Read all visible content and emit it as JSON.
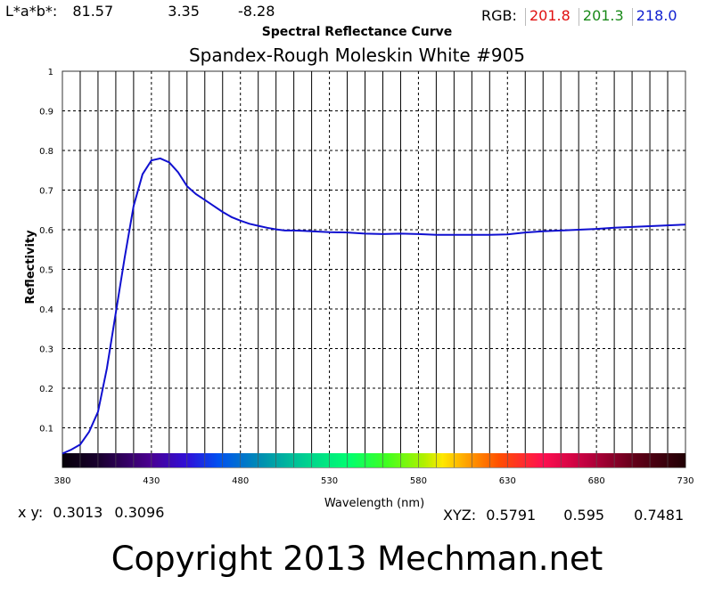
{
  "header": {
    "lab_label": "L*a*b*:",
    "lab_L": "81.57",
    "lab_a": "3.35",
    "lab_b": "-8.28",
    "rgb_label": "RGB:",
    "rgb_r": "201.8",
    "rgb_g": "201.3",
    "rgb_b": "218.0",
    "title": "Spectral Reflectance Curve"
  },
  "footer": {
    "xy_label": "x y:",
    "x": "0.3013",
    "y": "0.3096",
    "xyz_label": "XYZ:",
    "X": "0.5791",
    "Y": "0.595",
    "Z": "0.7481",
    "copyright": "Copyright 2013 Mechman.net"
  },
  "colors": {
    "curve": "#1010d0",
    "rgb_r": "#e01010",
    "rgb_g": "#1a8a1a",
    "rgb_b": "#1020d0"
  },
  "chart_data": {
    "type": "line",
    "title": "Spandex-Rough Moleskin White #905",
    "xlabel": "Wavelength (nm)",
    "ylabel": "Reflectivity",
    "xlim": [
      380,
      730
    ],
    "ylim": [
      0,
      1
    ],
    "xticks": [
      380,
      430,
      480,
      530,
      580,
      630,
      680,
      730
    ],
    "yticks": [
      "0.1",
      "0.2",
      "0.3",
      "0.4",
      "0.5",
      "0.6",
      "0.7",
      "0.8",
      "0.9",
      "1"
    ],
    "grid": true,
    "spectrum_bar": true,
    "series": [
      {
        "x": [
          380,
          385,
          390,
          395,
          400,
          405,
          410,
          415,
          420,
          425,
          430,
          435,
          440,
          445,
          450,
          455,
          460,
          465,
          470,
          475,
          480,
          485,
          490,
          495,
          500,
          505,
          510,
          515,
          520,
          530,
          540,
          550,
          560,
          570,
          580,
          590,
          600,
          610,
          620,
          630,
          640,
          650,
          660,
          670,
          680,
          690,
          700,
          710,
          720,
          730
        ],
        "y": [
          0.035,
          0.045,
          0.058,
          0.09,
          0.14,
          0.25,
          0.39,
          0.53,
          0.66,
          0.74,
          0.775,
          0.78,
          0.77,
          0.745,
          0.71,
          0.69,
          0.675,
          0.66,
          0.645,
          0.632,
          0.623,
          0.615,
          0.61,
          0.605,
          0.601,
          0.598,
          0.598,
          0.597,
          0.596,
          0.594,
          0.593,
          0.59,
          0.589,
          0.59,
          0.589,
          0.587,
          0.587,
          0.587,
          0.587,
          0.588,
          0.593,
          0.596,
          0.598,
          0.6,
          0.602,
          0.605,
          0.607,
          0.609,
          0.611,
          0.613
        ]
      }
    ]
  }
}
